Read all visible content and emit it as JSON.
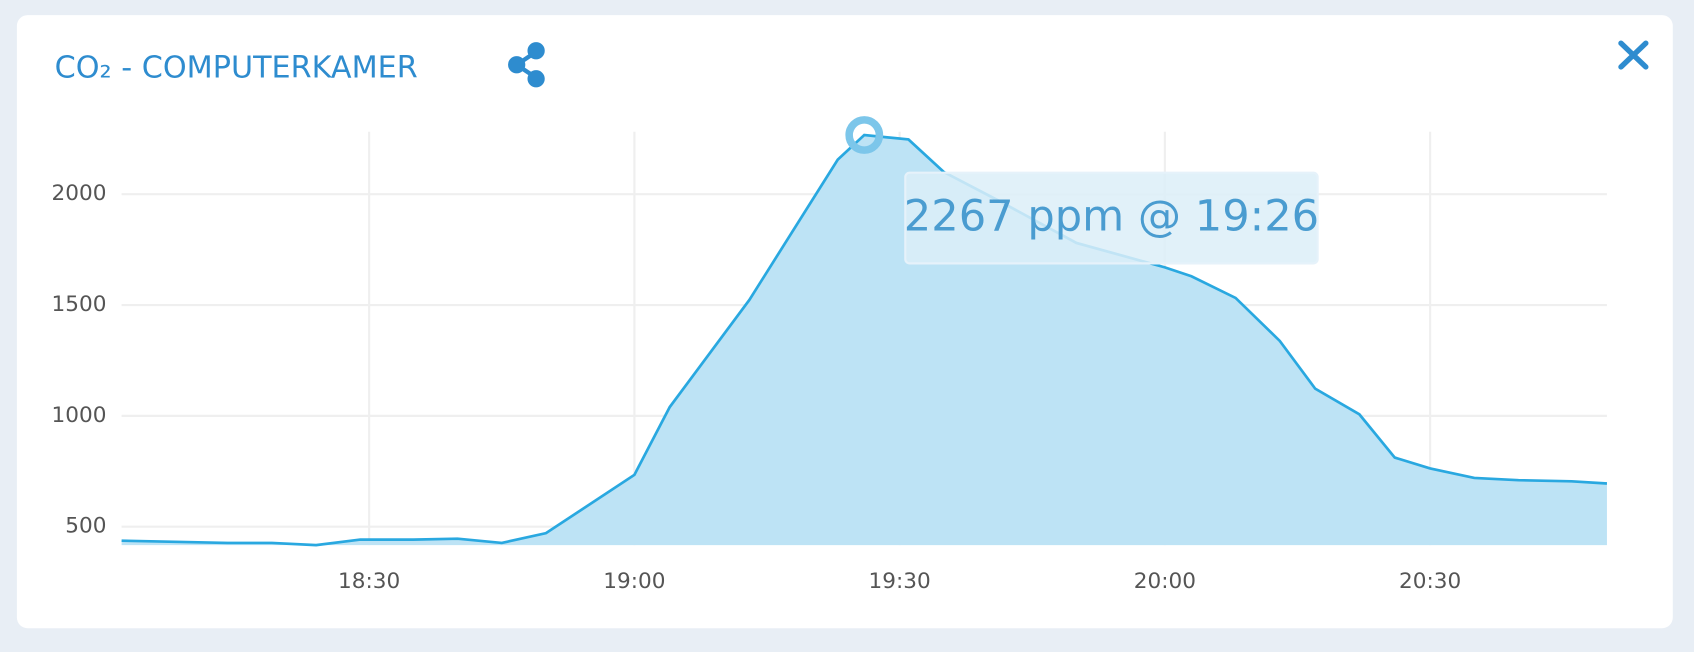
{
  "chart_data": {
    "type": "area",
    "title": "CO₂ -  COMPUTERKAMER",
    "x": [
      "18:02",
      "18:08",
      "18:14",
      "18:19",
      "18:24",
      "18:29",
      "18:35",
      "18:40",
      "18:45",
      "18:50",
      "19:00",
      "19:04",
      "19:13",
      "19:23",
      "19:26",
      "19:31",
      "19:35",
      "19:41",
      "19:50",
      "20:00",
      "20:03",
      "20:08",
      "20:13",
      "20:17",
      "20:22",
      "20:26",
      "20:30",
      "20:35",
      "20:40",
      "20:46",
      "20:50"
    ],
    "values": [
      437,
      432,
      427,
      427,
      417,
      442,
      442,
      446,
      427,
      471,
      734,
      1040,
      1523,
      2156,
      2267,
      2247,
      2100,
      1975,
      1780,
      1670,
      1630,
      1532,
      1338,
      1123,
      1007,
      812,
      763,
      720,
      710,
      705,
      695
    ],
    "color": "#29a8e0",
    "xlim": [
      "18:02",
      "20:50"
    ],
    "xticks": [
      "18:30",
      "19:00",
      "19:30",
      "20:00",
      "20:30"
    ],
    "ylim": [
      417,
      2282
    ],
    "yticks": [
      500,
      1000,
      1500,
      2000
    ],
    "grid": true,
    "tooltip": "2267 ppm @ 19:26"
  }
}
